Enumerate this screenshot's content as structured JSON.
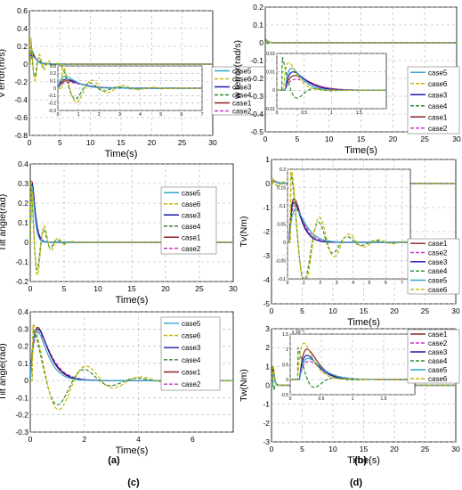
{
  "colors": {
    "case1": "#8b2222",
    "case2": "#cc33cc",
    "case3": "#1a1aa8",
    "case4": "#2e8b2e",
    "case5": "#33a6cc",
    "case6": "#c8b400",
    "axis": "#000000",
    "grid": "#b0b0b0"
  },
  "panel_labels": [
    "(a)",
    "(b)",
    "(c)",
    "(d)"
  ],
  "chart_data": [
    {
      "id": "a",
      "type": "line",
      "title": "",
      "xlabel": "Time(s)",
      "ylabel": "v  error(m/s)",
      "xlim": [
        0,
        30
      ],
      "ylim": [
        -0.8,
        0.6
      ],
      "xticks": [
        0,
        5,
        10,
        15,
        20,
        25,
        30
      ],
      "yticks": [
        -0.8,
        -0.6,
        -0.4,
        -0.2,
        0,
        0.2,
        0.4,
        0.6
      ],
      "grid": true,
      "legend_position": "right",
      "legend": [
        "case5",
        "case6",
        "case3",
        "case4",
        "case1",
        "case2"
      ],
      "inset": {
        "xlim": [
          0,
          7
        ],
        "ylim": [
          -0.3,
          0.3
        ],
        "xticks": [
          0,
          1,
          2,
          3,
          4,
          5,
          6,
          7
        ],
        "yticks": [
          -0.3,
          -0.2,
          -0.1,
          0,
          0.1,
          0.2,
          0.3
        ]
      }
    },
    {
      "id": "b",
      "type": "line",
      "title": "",
      "xlabel": "Time(s)",
      "ylabel": "w  terror(rad/s)",
      "xlim": [
        0,
        30
      ],
      "ylim": [
        -0.5,
        0.2
      ],
      "xticks": [
        0,
        5,
        10,
        15,
        20,
        25,
        30
      ],
      "yticks": [
        -0.5,
        -0.4,
        -0.3,
        -0.2,
        -0.1,
        0,
        0.1,
        0.2
      ],
      "grid": true,
      "legend_position": "right",
      "legend": [
        "case5",
        "case6",
        "case3",
        "case4",
        "case1",
        "case2"
      ],
      "inset": {
        "xlim": [
          0,
          2
        ],
        "ylim": [
          -0.01,
          0.02
        ],
        "xticks": [
          0,
          0.5,
          1,
          1.5
        ],
        "yticks": [
          -0.01,
          0,
          0.01,
          0.02
        ]
      }
    },
    {
      "id": "c1",
      "type": "line",
      "title": "",
      "xlabel": "Time(s)",
      "ylabel": "Tilt angle(rad)",
      "xlim": [
        0,
        30
      ],
      "ylim": [
        -0.2,
        0.4
      ],
      "xticks": [
        0,
        5,
        10,
        15,
        20,
        25,
        30
      ],
      "yticks": [
        -0.2,
        -0.1,
        0,
        0.1,
        0.2,
        0.3,
        0.4
      ],
      "grid": true,
      "legend_position": "top-right",
      "legend": [
        "case5",
        "case6",
        "case3",
        "case4",
        "case1",
        "case2"
      ]
    },
    {
      "id": "c2",
      "type": "line",
      "title": "",
      "xlabel": "Time(s)",
      "ylabel": "Tilt angle(rad)",
      "xlim": [
        0,
        7.5
      ],
      "ylim": [
        -0.3,
        0.4
      ],
      "xticks": [
        0,
        2,
        4,
        6
      ],
      "yticks": [
        -0.3,
        -0.2,
        -0.1,
        0,
        0.1,
        0.2,
        0.3,
        0.4
      ],
      "grid": true,
      "legend_position": "top-right",
      "legend": [
        "case5",
        "case6",
        "case3",
        "case4",
        "case1",
        "case2"
      ]
    },
    {
      "id": "d1",
      "type": "line",
      "title": "",
      "xlabel": "Time(s)",
      "ylabel": "Tv(Nm)",
      "xlim": [
        0,
        30
      ],
      "ylim": [
        -5,
        1
      ],
      "xticks": [
        0,
        5,
        10,
        15,
        20,
        25,
        30
      ],
      "yticks": [
        -5,
        -4,
        -3,
        -2,
        -1,
        0,
        1
      ],
      "grid": true,
      "legend_position": "right",
      "legend": [
        "case1",
        "case2",
        "case3",
        "case4",
        "case5",
        "case6"
      ],
      "inset": {
        "xlim": [
          0,
          7.5
        ],
        "ylim": [
          -0.1,
          0.2
        ],
        "xticks": [
          0,
          1,
          2,
          3,
          4,
          5,
          6,
          7
        ],
        "yticks": [
          -0.1,
          -0.05,
          0,
          0.05,
          0.1,
          0.15,
          0.2
        ]
      }
    },
    {
      "id": "d2",
      "type": "line",
      "title": "",
      "xlabel": "Time(s)",
      "ylabel": "Tw(Nm)",
      "xlim": [
        0,
        30
      ],
      "ylim": [
        -3,
        3
      ],
      "xticks": [
        0,
        5,
        10,
        15,
        20,
        25,
        30
      ],
      "yticks": [
        -3,
        -2,
        -1,
        0,
        1,
        2,
        3
      ],
      "grid": true,
      "legend_position": "right",
      "legend": [
        "case1",
        "case2",
        "case3",
        "case4",
        "case5",
        "case6"
      ],
      "inset": {
        "xlim": [
          0,
          2
        ],
        "ylim": [
          -0.5,
          1.5
        ],
        "xticks": [
          0,
          0.5,
          1,
          1.5
        ],
        "yticks": [
          -0.5,
          0,
          0.5,
          1,
          1.5
        ],
        "multiplier": "x 10⁻³"
      }
    }
  ]
}
